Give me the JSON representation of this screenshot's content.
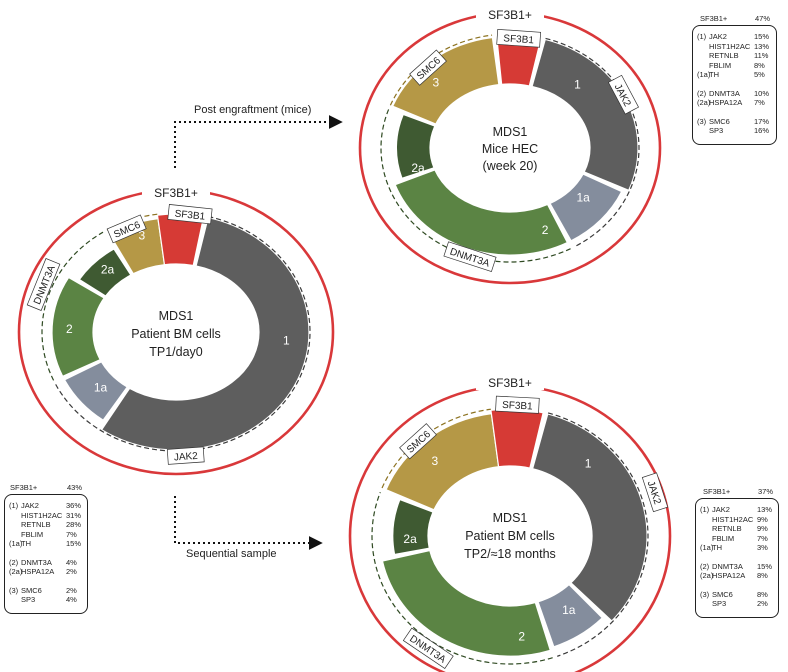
{
  "arrows": {
    "engraftment_label": "Post engraftment (mice)",
    "sequential_label": "Sequential sample"
  },
  "donuts": [
    {
      "id": "patient-tp1",
      "ring_label": "SF3B1+",
      "center_lines": [
        "MDS1",
        "Patient BM cells",
        "TP1/day0"
      ],
      "segments": [
        {
          "key": "sf3b1",
          "number": "",
          "tag": "SF3B1",
          "color": "#d63a35"
        },
        {
          "key": "jak2",
          "number": "1",
          "tag": "JAK2",
          "color": "#5e5e5e"
        },
        {
          "key": "th",
          "number": "1a",
          "tag": "",
          "color": "#7d8798"
        },
        {
          "key": "dnmt3a",
          "number": "2",
          "tag": "DNMT3A",
          "color": "#5b8444"
        },
        {
          "key": "hspa12a",
          "number": "2a",
          "tag": "",
          "color": "#3f5a32"
        },
        {
          "key": "smc6",
          "number": "3",
          "tag": "SMC6",
          "color": "#b59846"
        }
      ]
    },
    {
      "id": "mice-hec",
      "ring_label": "SF3B1+",
      "center_lines": [
        "MDS1",
        "Mice HEC",
        "(week 20)"
      ],
      "segments": [
        {
          "key": "sf3b1",
          "number": "",
          "tag": "SF3B1",
          "color": "#d63a35"
        },
        {
          "key": "jak2",
          "number": "1",
          "tag": "JAK2",
          "color": "#5e5e5e"
        },
        {
          "key": "th",
          "number": "1a",
          "tag": "",
          "color": "#7d8798"
        },
        {
          "key": "dnmt3a",
          "number": "2",
          "tag": "DNMT3A",
          "color": "#5b8444"
        },
        {
          "key": "hspa12a",
          "number": "2a",
          "tag": "",
          "color": "#3f5a32"
        },
        {
          "key": "smc6",
          "number": "3",
          "tag": "SMC6",
          "color": "#b59846"
        }
      ]
    },
    {
      "id": "patient-tp2",
      "ring_label": "SF3B1+",
      "center_lines": [
        "MDS1",
        "Patient BM cells",
        "TP2/≈18 months"
      ],
      "segments": [
        {
          "key": "sf3b1",
          "number": "",
          "tag": "SF3B1",
          "color": "#d63a35"
        },
        {
          "key": "jak2",
          "number": "1",
          "tag": "JAK2",
          "color": "#5e5e5e"
        },
        {
          "key": "th",
          "number": "1a",
          "tag": "",
          "color": "#7d8798"
        },
        {
          "key": "dnmt3a",
          "number": "2",
          "tag": "DNMT3A",
          "color": "#5b8444"
        },
        {
          "key": "hspa12a",
          "number": "2a",
          "tag": "",
          "color": "#3f5a32"
        },
        {
          "key": "smc6",
          "number": "3",
          "tag": "SMC6",
          "color": "#b59846"
        }
      ]
    }
  ],
  "legends": [
    {
      "id": "legend-tp1",
      "header": "SF3B1+",
      "header_value": "43%",
      "groups": [
        {
          "rows": [
            {
              "num": "(1)",
              "gene": "JAK2",
              "value": "36%"
            },
            {
              "num": "",
              "gene": "HIST1H2AC",
              "value": "31%"
            },
            {
              "num": "",
              "gene": "RETNLB",
              "value": "28%"
            },
            {
              "num": "",
              "gene": "FBLIM",
              "value": "7%"
            },
            {
              "num": "(1a)",
              "gene": "TH",
              "value": "15%"
            }
          ]
        },
        {
          "rows": [
            {
              "num": "(2)",
              "gene": "DNMT3A",
              "value": "4%"
            },
            {
              "num": "(2a)",
              "gene": "HSPA12A",
              "value": "2%"
            }
          ]
        },
        {
          "rows": [
            {
              "num": "(3)",
              "gene": "SMC6",
              "value": "2%"
            },
            {
              "num": "",
              "gene": "SP3",
              "value": "4%"
            }
          ]
        }
      ]
    },
    {
      "id": "legend-mice",
      "header": "SF3B1+",
      "header_value": "47%",
      "groups": [
        {
          "rows": [
            {
              "num": "(1)",
              "gene": "JAK2",
              "value": "15%"
            },
            {
              "num": "",
              "gene": "HIST1H2AC",
              "value": "13%"
            },
            {
              "num": "",
              "gene": "RETNLB",
              "value": "11%"
            },
            {
              "num": "",
              "gene": "FBLIM",
              "value": "8%"
            },
            {
              "num": "(1a)",
              "gene": "TH",
              "value": "5%"
            }
          ]
        },
        {
          "rows": [
            {
              "num": "(2)",
              "gene": "DNMT3A",
              "value": "10%"
            },
            {
              "num": "(2a)",
              "gene": "HSPA12A",
              "value": "7%"
            }
          ]
        },
        {
          "rows": [
            {
              "num": "(3)",
              "gene": "SMC6",
              "value": "17%"
            },
            {
              "num": "",
              "gene": "SP3",
              "value": "16%"
            }
          ]
        }
      ]
    },
    {
      "id": "legend-tp2",
      "header": "SF3B1+",
      "header_value": "37%",
      "groups": [
        {
          "rows": [
            {
              "num": "(1)",
              "gene": "JAK2",
              "value": "13%"
            },
            {
              "num": "",
              "gene": "HIST1H2AC",
              "value": "9%"
            },
            {
              "num": "",
              "gene": "RETNLB",
              "value": "9%"
            },
            {
              "num": "",
              "gene": "FBLIM",
              "value": "7%"
            },
            {
              "num": "(1a)",
              "gene": "TH",
              "value": "3%"
            }
          ]
        },
        {
          "rows": [
            {
              "num": "(2)",
              "gene": "DNMT3A",
              "value": "15%"
            },
            {
              "num": "(2a)",
              "gene": "HSPA12A",
              "value": "8%"
            }
          ]
        },
        {
          "rows": [
            {
              "num": "(3)",
              "gene": "SMC6",
              "value": "8%"
            },
            {
              "num": "",
              "gene": "SP3",
              "value": "2%"
            }
          ]
        }
      ]
    }
  ],
  "colors": {
    "ring": "#d9383a",
    "text": "#222222",
    "tag_border": "#333333"
  }
}
